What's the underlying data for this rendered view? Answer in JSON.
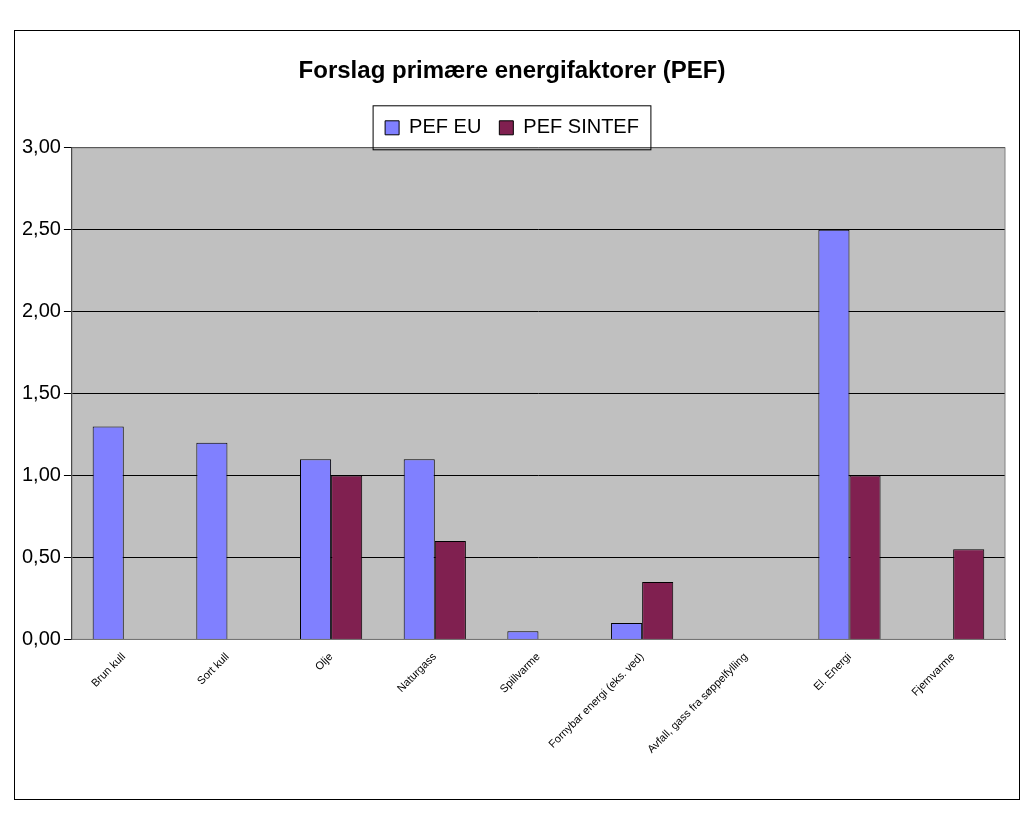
{
  "chart_data": {
    "type": "bar",
    "title": "Forslag primære energifaktorer (PEF)",
    "categories": [
      "Brun kull",
      "Sort kull",
      "Olje",
      "Naturgass",
      "Spillvarme",
      "Fornybar energi (eks. ved)",
      "Avfall, gass fra søppelfylling",
      "El. Energi",
      "Fjernvarme"
    ],
    "series": [
      {
        "name": "PEF EU",
        "color": "#8080ff",
        "values": [
          1.3,
          1.2,
          1.1,
          1.1,
          0.05,
          0.1,
          null,
          2.5,
          null
        ]
      },
      {
        "name": "PEF SINTEF",
        "color": "#802050",
        "values": [
          null,
          null,
          1.0,
          0.6,
          null,
          0.35,
          null,
          1.0,
          0.55
        ]
      }
    ],
    "ylim": [
      0,
      3
    ],
    "yticks": [
      {
        "value": 0,
        "label": "0,00"
      },
      {
        "value": 0.5,
        "label": "0,50"
      },
      {
        "value": 1,
        "label": "1,00"
      },
      {
        "value": 1.5,
        "label": "1,50"
      },
      {
        "value": 2,
        "label": "2,00"
      },
      {
        "value": 2.5,
        "label": "2,50"
      },
      {
        "value": 3,
        "label": "3,00"
      }
    ],
    "grid": true,
    "legend": "top"
  }
}
